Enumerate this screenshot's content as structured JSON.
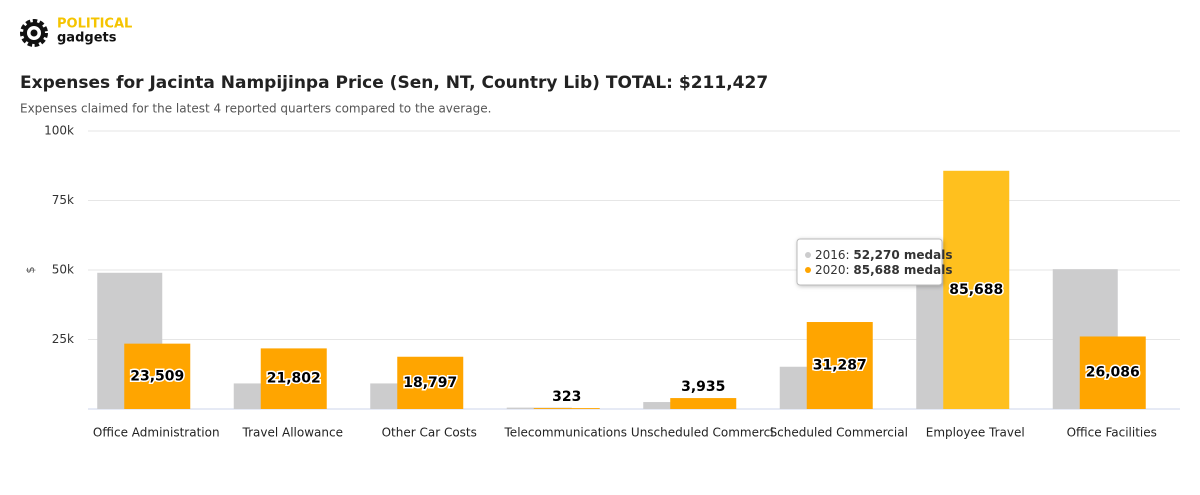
{
  "header": {
    "brand_top": "POLITICAL",
    "brand_bottom": "gadgets"
  },
  "chart_data": {
    "type": "bar",
    "title": "Expenses for Jacinta Nampijinpa Price (Sen, NT, Country Lib) TOTAL: $211,427",
    "subtitle": "Expenses claimed for the latest 4 reported quarters compared to the average.",
    "y_label": "$",
    "categories": [
      "Office Administration",
      "Travel Allowance",
      "Other Car Costs",
      "Telecommunications",
      "Unscheduled Commerci",
      "Scheduled Commercial",
      "Employee Travel",
      "Office Facilities"
    ],
    "series": [
      {
        "color": "#cccccd",
        "values": [
          49000,
          9200,
          9200,
          500,
          2500,
          15200,
          52270,
          50300
        ]
      },
      {
        "color": "#ffa500",
        "values": [
          23509,
          21802,
          18797,
          323,
          3935,
          31287,
          85688,
          26086
        ],
        "value_labels": [
          "23,509",
          "21,802",
          "18,797",
          "323",
          "3,935",
          "31,287",
          "85,688",
          "26,086"
        ]
      }
    ],
    "ylim": [
      0,
      100000
    ],
    "yticks": [
      {
        "value": 25000,
        "label": "25k"
      },
      {
        "value": 50000,
        "label": "50k"
      },
      {
        "value": 75000,
        "label": "75k"
      },
      {
        "value": 100000,
        "label": "100k"
      }
    ],
    "grid": true,
    "tooltip": {
      "category": 6,
      "items": [
        {
          "label": "2016: ",
          "value": "52,270 medals"
        },
        {
          "label": "2020: ",
          "value": "85,688 medals"
        }
      ]
    }
  }
}
